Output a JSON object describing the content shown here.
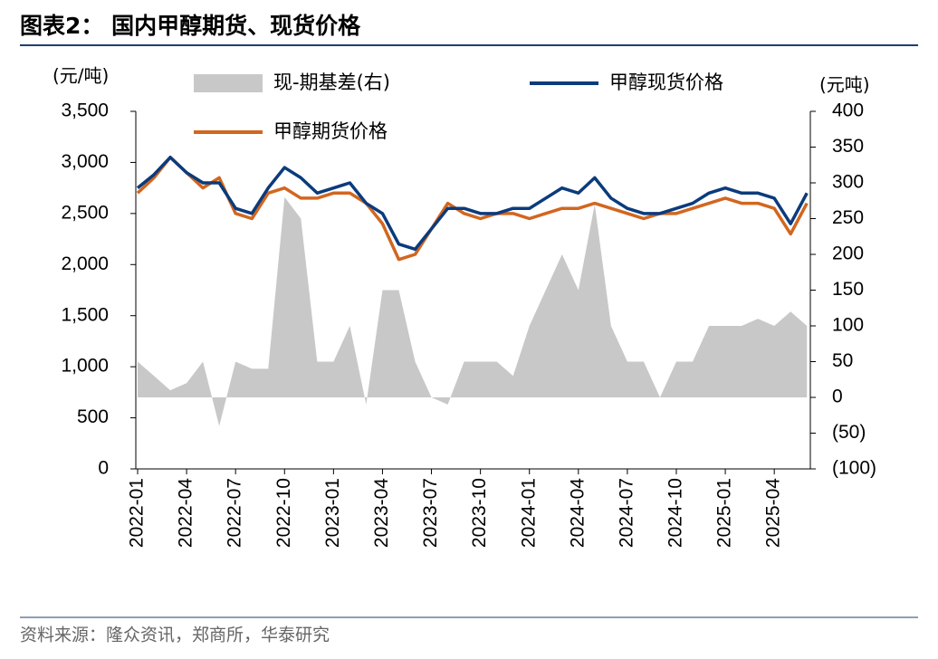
{
  "chart_data": {
    "type": "line",
    "title": "图表2：  国内甲醇期货、现货价格",
    "source": "资料来源：隆众资讯，郑商所，华泰研究",
    "y_label": "(元/吨)",
    "y2_label": "(元吨)",
    "categories": [
      "2022-01",
      null,
      null,
      "2022-04",
      null,
      null,
      "2022-07",
      null,
      null,
      "2022-10",
      null,
      null,
      "2023-01",
      null,
      null,
      "2023-04",
      null,
      null,
      "2023-07",
      null,
      null,
      "2023-10",
      null,
      null,
      "2024-01",
      null,
      null,
      "2024-04",
      null,
      null,
      "2024-07",
      null,
      null,
      "2024-10",
      null,
      null,
      "2025-01",
      null,
      null,
      "2025-04",
      null,
      null
    ],
    "series": [
      {
        "name": "现-期基差(右)",
        "type": "area",
        "axis": "y2",
        "color": "#c8c8c8",
        "values": [
          50,
          30,
          10,
          20,
          50,
          -40,
          50,
          40,
          40,
          280,
          250,
          50,
          50,
          100,
          -10,
          150,
          150,
          50,
          0,
          -10,
          50,
          50,
          50,
          30,
          100,
          150,
          200,
          150,
          270,
          100,
          50,
          50,
          0,
          50,
          50,
          100,
          100,
          100,
          110,
          100,
          120,
          100
        ]
      },
      {
        "name": "甲醇现货价格",
        "type": "line",
        "color": "#0b3b7c",
        "values": [
          2750,
          2880,
          3050,
          2900,
          2800,
          2800,
          2550,
          2500,
          2750,
          2950,
          2850,
          2700,
          2750,
          2800,
          2600,
          2500,
          2200,
          2150,
          2350,
          2550,
          2550,
          2500,
          2500,
          2550,
          2550,
          2650,
          2750,
          2700,
          2850,
          2650,
          2550,
          2500,
          2500,
          2550,
          2600,
          2700,
          2750,
          2700,
          2700,
          2650,
          2400,
          2700
        ]
      },
      {
        "name": "甲醇期货价格",
        "type": "line",
        "color": "#d2661f",
        "values": [
          2700,
          2850,
          3050,
          2900,
          2750,
          2850,
          2500,
          2450,
          2700,
          2750,
          2650,
          2650,
          2700,
          2700,
          2600,
          2400,
          2050,
          2100,
          2350,
          2600,
          2500,
          2450,
          2500,
          2500,
          2450,
          2500,
          2550,
          2550,
          2600,
          2550,
          2500,
          2450,
          2500,
          2500,
          2550,
          2600,
          2650,
          2600,
          2600,
          2550,
          2300,
          2600
        ]
      }
    ],
    "ylim": [
      0,
      3500
    ],
    "yticks": [
      0,
      500,
      {
        "value": 1000,
        "label": "1,000"
      },
      {
        "value": 1500,
        "label": "1,500"
      },
      {
        "value": 2000,
        "label": "2,000"
      },
      {
        "value": 2500,
        "label": "2,500"
      },
      {
        "value": 3000,
        "label": "3,000"
      },
      {
        "value": 3500,
        "label": "3,500"
      }
    ],
    "y2lim": [
      -100,
      400
    ],
    "y2ticks": [
      {
        "value": -100,
        "label": "(100)"
      },
      {
        "value": -50,
        "label": "(50)"
      },
      0,
      50,
      100,
      150,
      200,
      250,
      300,
      350,
      400
    ]
  }
}
